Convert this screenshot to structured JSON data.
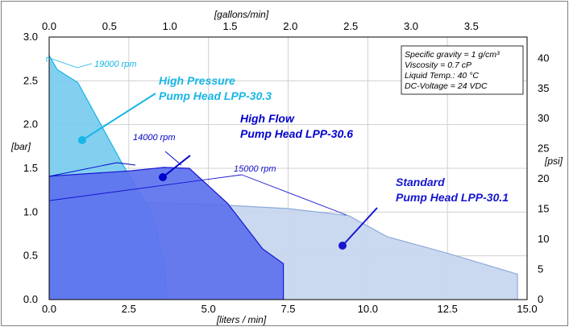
{
  "chart_data": {
    "type": "area",
    "title": "",
    "xlabel": "[liters / min]",
    "x2label": "[gallons/min]",
    "ylabel": "[bar]",
    "y2label": "[psi]",
    "xlim": [
      0,
      15
    ],
    "ylim": [
      0,
      3
    ],
    "x2lim": [
      0,
      3.962
    ],
    "y2lim": [
      0,
      43.51
    ],
    "grid": true,
    "xticks": [
      "0.0",
      "2.5",
      "5.0",
      "7.5",
      "10.0",
      "12.5",
      "15.0"
    ],
    "yticks": [
      "0.0",
      "0.5",
      "1.0",
      "1.5",
      "2.0",
      "2.5",
      "3.0"
    ],
    "x2ticks": [
      "0.0",
      "0.5",
      "1.0",
      "1.5",
      "2.0",
      "2.5",
      "3.0",
      "3.5"
    ],
    "y2ticks": [
      "0",
      "5",
      "10",
      "15",
      "20",
      "25",
      "30",
      "35",
      "40"
    ],
    "conditions": [
      "Specific gravity = 1 g/cm³",
      "Viscosity = 0.7 cP",
      "Liquid Temp.: 40 °C",
      "DC-Voltage = 24 VDC"
    ],
    "series": [
      {
        "name": "High Flow Pump Head LPP-30.6",
        "label_lines": [
          "High Flow",
          "Pump Head LPP-30.6"
        ],
        "rpm_label": "14000 rpm",
        "color": "#8eaadb",
        "fill": "#c5d6ee",
        "points": [
          [
            0,
            1.12
          ],
          [
            2.5,
            1.11
          ],
          [
            5.0,
            1.09
          ],
          [
            7.5,
            1.04
          ],
          [
            9.4,
            0.96
          ],
          [
            10.6,
            0.72
          ],
          [
            12.5,
            0.53
          ],
          [
            14.7,
            0.29
          ],
          [
            14.7,
            0
          ]
        ]
      },
      {
        "name": "High Pressure Pump Head LPP-30.3",
        "label_lines": [
          "High Pressure",
          "Pump Head LPP-30.3"
        ],
        "rpm_label": "19000 rpm",
        "color": "#17b6e6",
        "fill": "#77cbef",
        "points": [
          [
            0,
            2.79
          ],
          [
            0.25,
            2.63
          ],
          [
            0.9,
            2.48
          ],
          [
            2.3,
            1.55
          ],
          [
            3.2,
            1.0
          ],
          [
            3.6,
            0.45
          ],
          [
            3.7,
            0
          ]
        ]
      },
      {
        "name": "Standard Pump Head LPP-30.1",
        "label_lines": [
          "Standard",
          "Pump Head LPP-30.1"
        ],
        "rpm_label": "15000 rpm",
        "color": "#1515d0",
        "fill": "#5d72ee",
        "points": [
          [
            0,
            1.41
          ],
          [
            2.5,
            1.47
          ],
          [
            3.6,
            1.51
          ],
          [
            4.4,
            1.5
          ],
          [
            5.6,
            1.1
          ],
          [
            6.7,
            0.58
          ],
          [
            7.35,
            0.41
          ],
          [
            7.35,
            0
          ]
        ]
      }
    ]
  }
}
